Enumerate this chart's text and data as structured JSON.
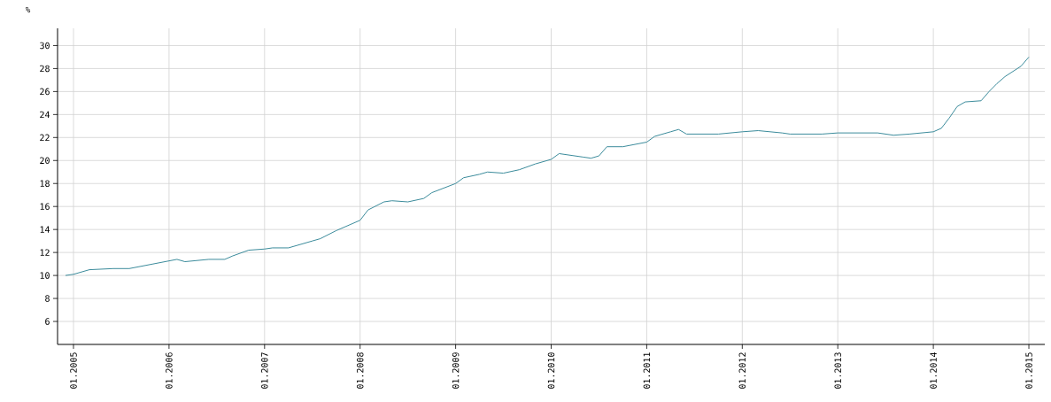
{
  "chart_data": {
    "type": "line",
    "ylabel": "%",
    "x": [
      "2004-12",
      "2005-01",
      "2005-03",
      "2005-06",
      "2005-08",
      "2005-11",
      "2006-02",
      "2006-03",
      "2006-06",
      "2006-08",
      "2006-09",
      "2006-11",
      "2007-01",
      "2007-02",
      "2007-04",
      "2007-07",
      "2007-08",
      "2007-10",
      "2008-01",
      "2008-02",
      "2008-04",
      "2008-05",
      "2008-07",
      "2008-09",
      "2008-10",
      "2009-01",
      "2009-02",
      "2009-04",
      "2009-05",
      "2009-07",
      "2009-09",
      "2009-11",
      "2010-01",
      "2010-02",
      "2010-05",
      "2010-06",
      "2010-07",
      "2010-08",
      "2010-10",
      "2011-01",
      "2011-02",
      "2011-04",
      "2011-05",
      "2011-06",
      "2011-10",
      "2012-01",
      "2012-03",
      "2012-06",
      "2012-07",
      "2012-11",
      "2013-01",
      "2013-06",
      "2013-08",
      "2013-10",
      "2014-01",
      "2014-02",
      "2014-03",
      "2014-04",
      "2014-05",
      "2014-07",
      "2014-08",
      "2014-09",
      "2014-10",
      "2014-12",
      "2015-01"
    ],
    "series": [
      {
        "color": "#3a8b9b",
        "values": [
          10.0,
          10.1,
          10.5,
          10.6,
          10.6,
          11.0,
          11.4,
          11.2,
          11.4,
          11.4,
          11.7,
          12.2,
          12.3,
          12.4,
          12.4,
          13.0,
          13.2,
          13.9,
          14.8,
          15.7,
          16.4,
          16.5,
          16.4,
          16.7,
          17.2,
          18.0,
          18.5,
          18.8,
          19.0,
          18.9,
          19.2,
          19.7,
          20.1,
          20.6,
          20.3,
          20.2,
          20.4,
          21.2,
          21.2,
          21.6,
          22.1,
          22.5,
          22.7,
          22.3,
          22.3,
          22.5,
          22.6,
          22.4,
          22.3,
          22.3,
          22.4,
          22.4,
          22.2,
          22.3,
          22.5,
          22.8,
          23.7,
          24.7,
          25.1,
          25.2,
          26.0,
          26.7,
          27.3,
          28.2,
          29.0
        ]
      }
    ],
    "xlim": [
      "2004-11",
      "2015-03"
    ],
    "xticks": [
      {
        "value": "2005-01",
        "label": "01.2005"
      },
      {
        "value": "2006-01",
        "label": "01.2006"
      },
      {
        "value": "2007-01",
        "label": "01.2007"
      },
      {
        "value": "2008-01",
        "label": "01.2008"
      },
      {
        "value": "2009-01",
        "label": "01.2009"
      },
      {
        "value": "2010-01",
        "label": "01.2010"
      },
      {
        "value": "2011-01",
        "label": "01.2011"
      },
      {
        "value": "2012-01",
        "label": "01.2012"
      },
      {
        "value": "2013-01",
        "label": "01.2013"
      },
      {
        "value": "2014-01",
        "label": "01.2014"
      },
      {
        "value": "2015-01",
        "label": "01.2015"
      }
    ],
    "ylim": [
      4,
      31.5
    ],
    "yticks": [
      6,
      8,
      10,
      12,
      14,
      16,
      18,
      20,
      22,
      24,
      26,
      28,
      30
    ],
    "grid": true,
    "marker": "none",
    "line_style": "solid"
  }
}
